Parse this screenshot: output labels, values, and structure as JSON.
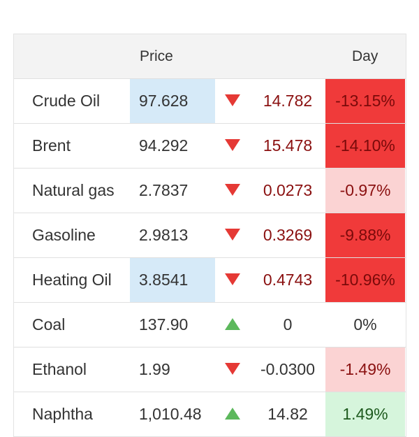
{
  "header": {
    "price_label": "Price",
    "day_label": "Day"
  },
  "rows": [
    {
      "name": "Crude Oil",
      "price": "97.628",
      "price_highlight": true,
      "direction": "down",
      "change": "14.782",
      "day": "-13.15%",
      "day_style": "strong"
    },
    {
      "name": "Brent",
      "price": "94.292",
      "price_highlight": false,
      "direction": "down",
      "change": "15.478",
      "day": "-14.10%",
      "day_style": "strong"
    },
    {
      "name": "Natural gas",
      "price": "2.7837",
      "price_highlight": false,
      "direction": "down",
      "change": "0.0273",
      "day": "-0.97%",
      "day_style": "light"
    },
    {
      "name": "Gasoline",
      "price": "2.9813",
      "price_highlight": false,
      "direction": "down",
      "change": "0.3269",
      "day": "-9.88%",
      "day_style": "strong"
    },
    {
      "name": "Heating Oil",
      "price": "3.8541",
      "price_highlight": true,
      "direction": "down",
      "change": "0.4743",
      "day": "-10.96%",
      "day_style": "strong"
    },
    {
      "name": "Coal",
      "price": "137.90",
      "price_highlight": false,
      "direction": "up",
      "change": "0",
      "day": "0%",
      "day_style": "none"
    },
    {
      "name": "Ethanol",
      "price": "1.99",
      "price_highlight": false,
      "direction": "down",
      "change": "-0.0300",
      "day": "-1.49%",
      "day_style": "light"
    },
    {
      "name": "Naphtha",
      "price": "1,010.48",
      "price_highlight": false,
      "direction": "up",
      "change": "14.82",
      "day": "1.49%",
      "day_style": "pos"
    }
  ],
  "colors": {
    "down_arrow": "#e53935",
    "up_arrow": "#5cb85c",
    "price_highlight": "#d6eaf8",
    "day_strong": "#f03a3a",
    "day_light": "#fbd3d3",
    "day_positive": "#d6f5dc"
  }
}
